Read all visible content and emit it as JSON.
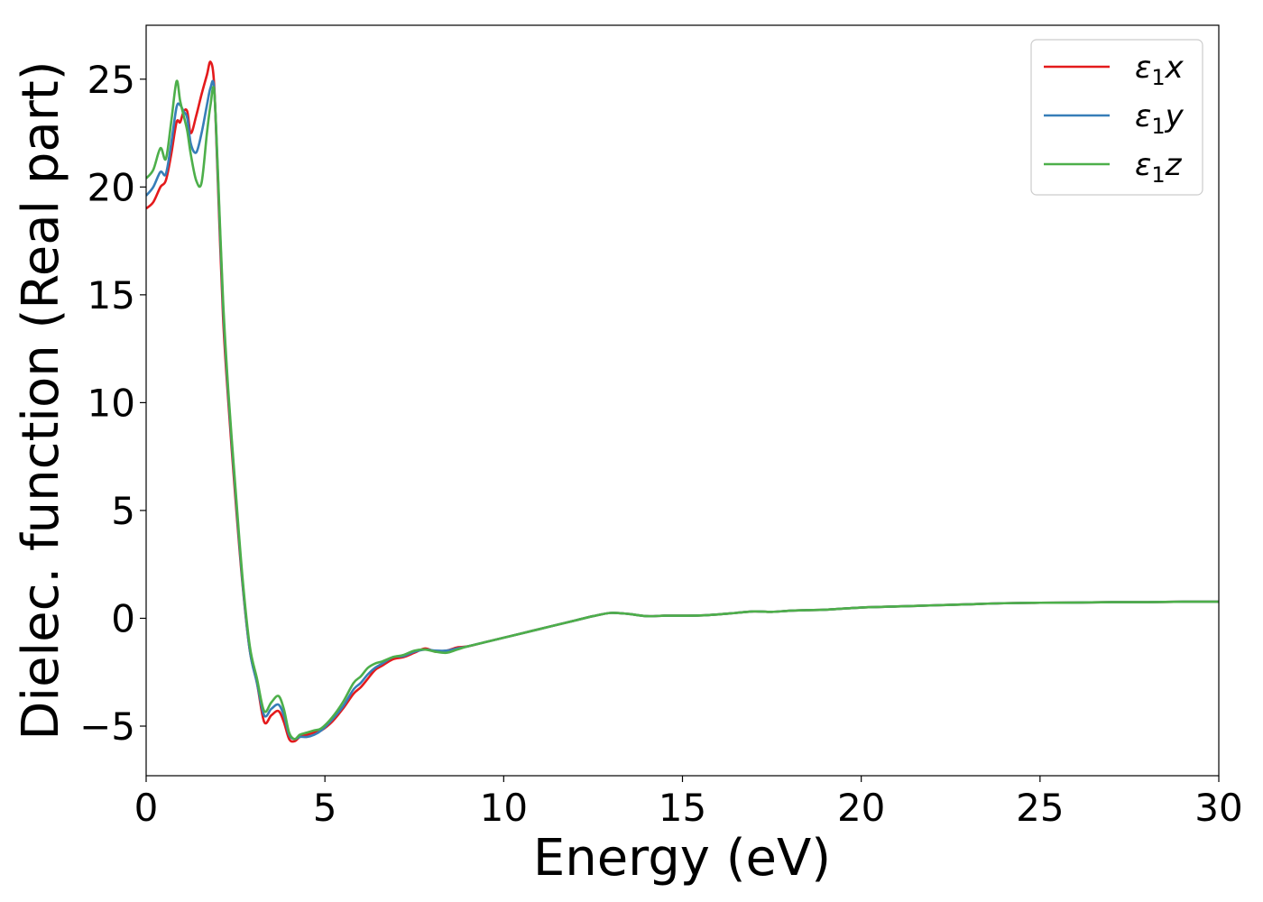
{
  "chart_data": {
    "type": "line",
    "xlabel": "Energy (eV)",
    "ylabel": "Dielec. function (Real part)",
    "xlim": [
      0,
      30
    ],
    "ylim": [
      -7.3,
      27.5
    ],
    "xticks": [
      0,
      5,
      10,
      15,
      20,
      25,
      30
    ],
    "xtick_labels": [
      "0",
      "5",
      "10",
      "15",
      "20",
      "25",
      "30"
    ],
    "yticks": [
      -5,
      0,
      5,
      10,
      15,
      20,
      25
    ],
    "ytick_labels": [
      "−5",
      "0",
      "5",
      "10",
      "15",
      "20",
      "25"
    ],
    "grid": false,
    "legend_position": "top-right",
    "series": [
      {
        "name": "ε₁x",
        "legend": {
          "base": "ε",
          "sub": "1",
          "suffix": "x"
        },
        "color": "#e41a1c",
        "x": [
          0,
          0.2,
          0.4,
          0.55,
          0.7,
          0.85,
          0.95,
          1.05,
          1.15,
          1.25,
          1.4,
          1.55,
          1.7,
          1.8,
          1.9,
          2.0,
          2.15,
          2.3,
          2.5,
          2.7,
          2.9,
          3.1,
          3.3,
          3.5,
          3.7,
          3.85,
          4.0,
          4.15,
          4.3,
          4.5,
          4.7,
          4.9,
          5.2,
          5.5,
          5.8,
          6.0,
          6.2,
          6.4,
          6.6,
          6.9,
          7.2,
          7.5,
          7.8,
          8.1,
          8.4,
          8.7,
          9.0,
          9.5,
          10.0,
          10.5,
          11.0,
          11.5,
          12.0,
          12.5,
          13.0,
          13.5,
          14.0,
          14.5,
          15.0,
          15.5,
          16.0,
          16.5,
          17.0,
          17.5,
          18.0,
          18.5,
          19.0,
          20.0,
          21.0,
          22.0,
          23.0,
          24.0,
          25.0,
          26.0,
          27.0,
          28.0,
          29.0,
          30.0
        ],
        "values": [
          19.0,
          19.3,
          20.0,
          20.3,
          21.5,
          23.0,
          23.0,
          23.5,
          23.5,
          22.5,
          23.3,
          24.3,
          25.2,
          25.8,
          24.8,
          20.5,
          14.0,
          10.0,
          5.5,
          1.5,
          -1.5,
          -3.0,
          -4.8,
          -4.5,
          -4.3,
          -4.8,
          -5.6,
          -5.7,
          -5.5,
          -5.4,
          -5.3,
          -5.2,
          -4.8,
          -4.2,
          -3.5,
          -3.2,
          -2.8,
          -2.4,
          -2.2,
          -1.9,
          -1.8,
          -1.6,
          -1.4,
          -1.55,
          -1.5,
          -1.35,
          -1.3,
          -1.1,
          -0.9,
          -0.7,
          -0.5,
          -0.3,
          -0.1,
          0.1,
          0.25,
          0.2,
          0.1,
          0.12,
          0.12,
          0.13,
          0.18,
          0.25,
          0.32,
          0.3,
          0.35,
          0.38,
          0.4,
          0.5,
          0.55,
          0.6,
          0.65,
          0.7,
          0.72,
          0.73,
          0.75,
          0.75,
          0.77,
          0.77
        ]
      },
      {
        "name": "ε₁y",
        "legend": {
          "base": "ε",
          "sub": "1",
          "suffix": "y"
        },
        "color": "#377eb8",
        "x": [
          0,
          0.2,
          0.4,
          0.55,
          0.7,
          0.85,
          0.95,
          1.05,
          1.15,
          1.25,
          1.4,
          1.55,
          1.7,
          1.8,
          1.9,
          2.0,
          2.15,
          2.3,
          2.5,
          2.7,
          2.9,
          3.1,
          3.3,
          3.5,
          3.7,
          3.85,
          4.0,
          4.15,
          4.3,
          4.5,
          4.7,
          4.9,
          5.2,
          5.5,
          5.8,
          6.0,
          6.2,
          6.4,
          6.6,
          6.9,
          7.2,
          7.5,
          7.8,
          8.1,
          8.4,
          8.7,
          9.0,
          9.5,
          10.0,
          10.5,
          11.0,
          11.5,
          12.0,
          12.5,
          13.0,
          13.5,
          14.0,
          14.5,
          15.0,
          15.5,
          16.0,
          16.5,
          17.0,
          17.5,
          18.0,
          18.5,
          19.0,
          20.0,
          21.0,
          22.0,
          23.0,
          24.0,
          25.0,
          26.0,
          27.0,
          28.0,
          29.0,
          30.0
        ],
        "values": [
          19.6,
          20.0,
          20.7,
          20.6,
          22.0,
          23.7,
          23.8,
          23.5,
          23.2,
          22.0,
          21.6,
          22.5,
          23.8,
          24.6,
          24.6,
          20.8,
          14.5,
          10.3,
          5.8,
          1.6,
          -1.5,
          -3.0,
          -4.5,
          -4.2,
          -4.0,
          -4.5,
          -5.4,
          -5.6,
          -5.5,
          -5.5,
          -5.4,
          -5.2,
          -4.7,
          -4.1,
          -3.3,
          -3.0,
          -2.6,
          -2.3,
          -2.1,
          -1.8,
          -1.75,
          -1.55,
          -1.45,
          -1.5,
          -1.5,
          -1.4,
          -1.3,
          -1.1,
          -0.9,
          -0.7,
          -0.5,
          -0.3,
          -0.1,
          0.1,
          0.25,
          0.2,
          0.1,
          0.12,
          0.12,
          0.13,
          0.18,
          0.25,
          0.32,
          0.3,
          0.35,
          0.38,
          0.4,
          0.5,
          0.55,
          0.6,
          0.65,
          0.7,
          0.72,
          0.73,
          0.75,
          0.75,
          0.77,
          0.77
        ]
      },
      {
        "name": "ε₁z",
        "legend": {
          "base": "ε",
          "sub": "1",
          "suffix": "z"
        },
        "color": "#4daf4a",
        "x": [
          0,
          0.2,
          0.4,
          0.55,
          0.7,
          0.85,
          0.95,
          1.05,
          1.15,
          1.25,
          1.4,
          1.55,
          1.7,
          1.8,
          1.9,
          2.0,
          2.15,
          2.3,
          2.5,
          2.7,
          2.9,
          3.1,
          3.3,
          3.5,
          3.7,
          3.85,
          4.0,
          4.15,
          4.3,
          4.5,
          4.7,
          4.9,
          5.2,
          5.5,
          5.8,
          6.0,
          6.2,
          6.4,
          6.6,
          6.9,
          7.2,
          7.5,
          7.8,
          8.1,
          8.4,
          8.7,
          9.0,
          9.5,
          10.0,
          10.5,
          11.0,
          11.5,
          12.0,
          12.5,
          13.0,
          13.5,
          14.0,
          14.5,
          15.0,
          15.5,
          16.0,
          16.5,
          17.0,
          17.5,
          18.0,
          18.5,
          19.0,
          20.0,
          21.0,
          22.0,
          23.0,
          24.0,
          25.0,
          26.0,
          27.0,
          28.0,
          29.0,
          30.0
        ],
        "values": [
          20.4,
          20.8,
          21.8,
          21.3,
          23.0,
          24.9,
          24.0,
          23.3,
          22.6,
          21.5,
          20.3,
          20.2,
          22.5,
          23.8,
          24.5,
          21.0,
          14.8,
          10.5,
          6.0,
          1.8,
          -1.3,
          -2.8,
          -4.3,
          -3.9,
          -3.6,
          -4.2,
          -5.3,
          -5.6,
          -5.4,
          -5.3,
          -5.2,
          -5.1,
          -4.6,
          -3.9,
          -3.0,
          -2.7,
          -2.3,
          -2.1,
          -2.0,
          -1.8,
          -1.7,
          -1.5,
          -1.45,
          -1.55,
          -1.6,
          -1.45,
          -1.3,
          -1.1,
          -0.9,
          -0.7,
          -0.5,
          -0.3,
          -0.1,
          0.1,
          0.25,
          0.2,
          0.1,
          0.12,
          0.12,
          0.13,
          0.18,
          0.25,
          0.32,
          0.3,
          0.35,
          0.38,
          0.4,
          0.5,
          0.55,
          0.6,
          0.65,
          0.7,
          0.72,
          0.73,
          0.75,
          0.75,
          0.77,
          0.77
        ]
      }
    ]
  }
}
